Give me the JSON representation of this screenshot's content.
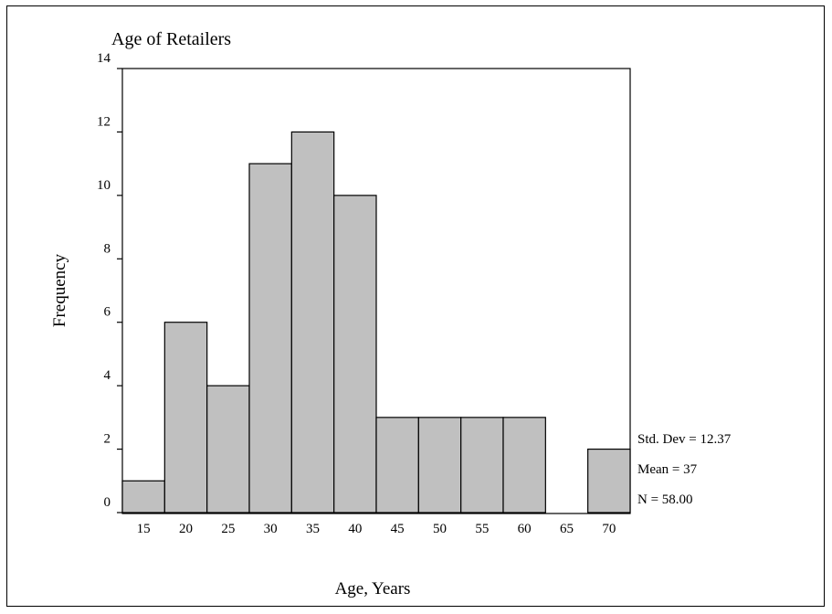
{
  "chart_data": {
    "type": "bar",
    "title": "Age of Retailers",
    "xlabel": "Age, Years",
    "ylabel": "Frequency",
    "categories": [
      "15",
      "20",
      "25",
      "30",
      "35",
      "40",
      "45",
      "50",
      "55",
      "60",
      "65",
      "70"
    ],
    "values": [
      1,
      6,
      4,
      11,
      12,
      10,
      3,
      3,
      3,
      3,
      0,
      2
    ],
    "ylim": [
      0,
      14
    ],
    "yticks": [
      0,
      2,
      4,
      6,
      8,
      10,
      12,
      14
    ],
    "grid": false,
    "bar_color": "#c0c0c0",
    "stats": {
      "std_dev": "Std. Dev = 12.37",
      "mean": "Mean = 37",
      "n": "N = 58.00"
    }
  }
}
